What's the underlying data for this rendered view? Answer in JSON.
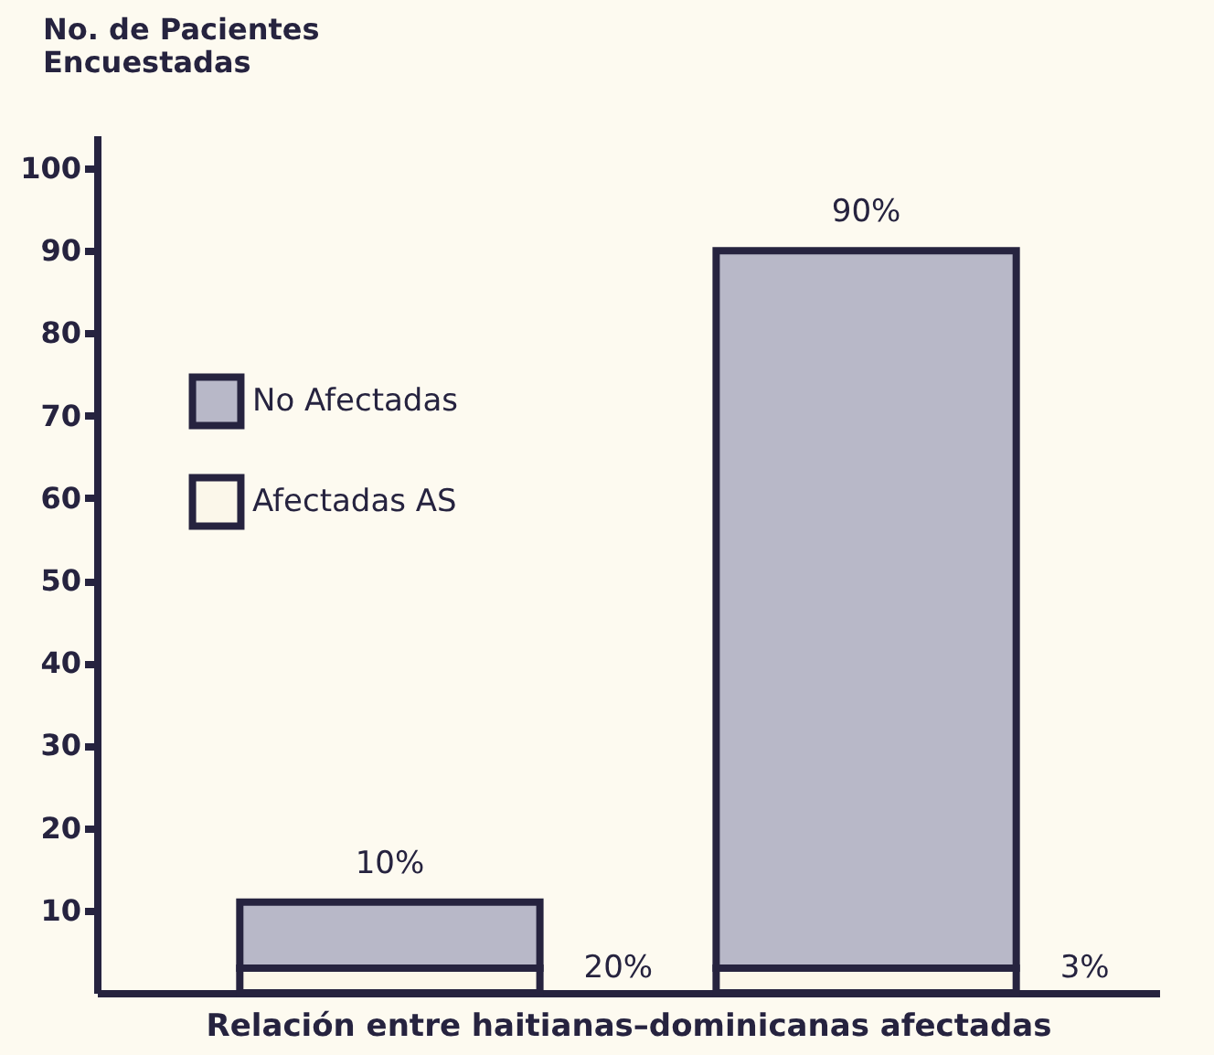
{
  "chart_data": {
    "type": "bar",
    "stacked": true,
    "xlabel": "Relación entre haitianas–dominicanas afectadas",
    "ylabel": "No. de Pacientes Encuestadas",
    "categories": [
      null,
      null
    ],
    "series": [
      {
        "name": "Afectadas AS",
        "color": "#fbf7ea",
        "values": [
          3,
          3
        ]
      },
      {
        "name": "No Afectadas",
        "color": "#b8b8c8",
        "values": [
          8,
          87
        ]
      }
    ],
    "annotations": [
      {
        "text": "10%",
        "y": 11
      },
      "20%",
      {
        "text": "90%",
        "y": 90
      },
      "3%"
    ],
    "ylim": [
      0,
      104
    ],
    "yticks": [
      10,
      20,
      30,
      40,
      50,
      60,
      70,
      80,
      90,
      100
    ],
    "grid": false,
    "legend": "top left"
  }
}
